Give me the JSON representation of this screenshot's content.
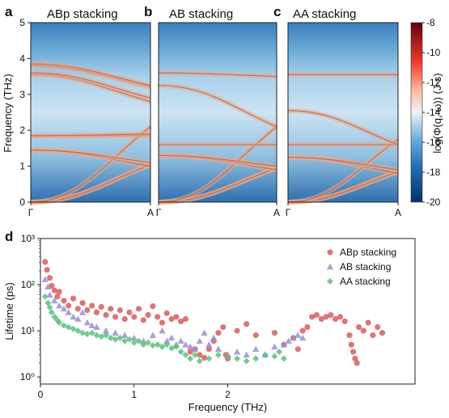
{
  "chart_data": [
    {
      "type": "heatmap",
      "panel": "a",
      "title": "ABp stacking",
      "ylabel": "Frequency (THz)",
      "ylim": [
        0,
        5
      ],
      "yticks": [
        "0",
        "1",
        "2",
        "3",
        "4",
        "5"
      ],
      "xticks": [
        "Γ",
        "A"
      ],
      "bands": [
        {
          "gamma": 0.0,
          "A": 1.05
        },
        {
          "gamma": 0.0,
          "A": 1.05
        },
        {
          "gamma": 0.0,
          "A": 2.1
        },
        {
          "gamma": 1.45,
          "A": 1.0
        },
        {
          "gamma": 1.45,
          "A": 1.1
        },
        {
          "gamma": 1.85,
          "A": 1.85
        },
        {
          "gamma": 1.85,
          "A": 1.9
        },
        {
          "gamma": 3.55,
          "A": 2.8
        },
        {
          "gamma": 3.6,
          "A": 2.9
        },
        {
          "gamma": 3.8,
          "A": 3.2
        },
        {
          "gamma": 3.85,
          "A": 3.25
        }
      ]
    },
    {
      "type": "heatmap",
      "panel": "b",
      "title": "AB stacking",
      "ylim": [
        0,
        5
      ],
      "xticks": [
        "Γ",
        "A"
      ],
      "bands": [
        {
          "gamma": 0.0,
          "A": 0.95
        },
        {
          "gamma": 0.0,
          "A": 0.95
        },
        {
          "gamma": 0.0,
          "A": 2.1
        },
        {
          "gamma": 1.3,
          "A": 0.9
        },
        {
          "gamma": 1.3,
          "A": 1.0
        },
        {
          "gamma": 1.6,
          "A": 1.6
        },
        {
          "gamma": 3.25,
          "A": 2.1
        },
        {
          "gamma": 3.6,
          "A": 3.5
        }
      ]
    },
    {
      "type": "heatmap",
      "panel": "c",
      "title": "AA stacking",
      "ylim": [
        0,
        5
      ],
      "xticks": [
        "Γ",
        "A"
      ],
      "bands": [
        {
          "gamma": 0.0,
          "A": 0.85
        },
        {
          "gamma": 0.0,
          "A": 0.85
        },
        {
          "gamma": 0.0,
          "A": 1.75
        },
        {
          "gamma": 1.25,
          "A": 0.8
        },
        {
          "gamma": 1.25,
          "A": 0.9
        },
        {
          "gamma": 1.6,
          "A": 1.6
        },
        {
          "gamma": 2.55,
          "A": 1.6
        },
        {
          "gamma": 3.55,
          "A": 3.55
        }
      ],
      "colorbar": {
        "label": "log(Φ(q, ω)) (J·s)",
        "range": [
          -20,
          -8
        ],
        "ticks": [
          "-8",
          "-10",
          "-12",
          "-14",
          "-16",
          "-18",
          "-20"
        ]
      }
    },
    {
      "type": "scatter",
      "panel": "d",
      "xlabel": "Frequency (THz)",
      "ylabel": "Lifetime (ps)",
      "yscale": "log",
      "xlim": [
        0,
        4
      ],
      "ylim": [
        0.7,
        1000
      ],
      "xticks": [
        "0",
        "1",
        "2"
      ],
      "yticks": [
        "10⁰",
        "10¹",
        "10²",
        "10³"
      ],
      "legend": "top-right",
      "series": [
        {
          "name": "ABp stacking",
          "color": "#d65f5f",
          "marker": "circle",
          "points": [
            [
              0.05,
              310
            ],
            [
              0.07,
              210
            ],
            [
              0.1,
              140
            ],
            [
              0.12,
              95
            ],
            [
              0.15,
              75
            ],
            [
              0.18,
              55
            ],
            [
              0.2,
              70
            ],
            [
              0.25,
              45
            ],
            [
              0.3,
              35
            ],
            [
              0.35,
              50
            ],
            [
              0.4,
              30
            ],
            [
              0.45,
              40
            ],
            [
              0.5,
              28
            ],
            [
              0.55,
              35
            ],
            [
              0.6,
              25
            ],
            [
              0.65,
              33
            ],
            [
              0.7,
              22
            ],
            [
              0.75,
              30
            ],
            [
              0.8,
              20
            ],
            [
              0.85,
              28
            ],
            [
              0.9,
              18
            ],
            [
              0.95,
              25
            ],
            [
              1.0,
              20
            ],
            [
              1.05,
              30
            ],
            [
              1.1,
              17
            ],
            [
              1.15,
              22
            ],
            [
              1.2,
              34
            ],
            [
              1.25,
              20
            ],
            [
              1.3,
              15
            ],
            [
              1.35,
              24
            ],
            [
              1.4,
              18
            ],
            [
              1.45,
              20
            ],
            [
              1.5,
              16
            ],
            [
              1.55,
              18
            ],
            [
              1.6,
              3.5
            ],
            [
              1.65,
              4
            ],
            [
              1.7,
              3
            ],
            [
              1.75,
              2.6
            ],
            [
              1.8,
              4
            ],
            [
              1.85,
              6
            ],
            [
              1.9,
              9
            ],
            [
              1.95,
              12
            ],
            [
              1.98,
              3
            ],
            [
              2.0,
              2.5
            ],
            [
              2.1,
              10
            ],
            [
              2.2,
              14
            ],
            [
              2.3,
              8
            ],
            [
              2.5,
              9
            ],
            [
              2.6,
              5
            ],
            [
              2.7,
              7
            ],
            [
              2.75,
              4
            ],
            [
              2.8,
              10
            ],
            [
              2.85,
              12
            ],
            [
              2.9,
              20
            ],
            [
              2.95,
              22
            ],
            [
              3.0,
              18
            ],
            [
              3.05,
              20
            ],
            [
              3.1,
              22
            ],
            [
              3.15,
              18
            ],
            [
              3.2,
              20
            ],
            [
              3.25,
              16
            ],
            [
              3.3,
              8
            ],
            [
              3.32,
              5
            ],
            [
              3.34,
              3.5
            ],
            [
              3.36,
              2.5
            ],
            [
              3.38,
              2
            ],
            [
              3.4,
              12
            ],
            [
              3.45,
              10
            ],
            [
              3.5,
              15
            ],
            [
              3.55,
              8
            ],
            [
              3.6,
              12
            ],
            [
              3.65,
              9
            ]
          ]
        },
        {
          "name": "AB stacking",
          "color": "#9a8fd0",
          "marker": "triangle",
          "points": [
            [
              0.05,
              130
            ],
            [
              0.08,
              90
            ],
            [
              0.1,
              60
            ],
            [
              0.15,
              45
            ],
            [
              0.2,
              35
            ],
            [
              0.25,
              30
            ],
            [
              0.3,
              25
            ],
            [
              0.35,
              20
            ],
            [
              0.4,
              18
            ],
            [
              0.45,
              25
            ],
            [
              0.5,
              15
            ],
            [
              0.55,
              13
            ],
            [
              0.6,
              12
            ],
            [
              0.7,
              10
            ],
            [
              0.8,
              9
            ],
            [
              0.9,
              8
            ],
            [
              1.0,
              7
            ],
            [
              1.1,
              6
            ],
            [
              1.2,
              8
            ],
            [
              1.3,
              10
            ],
            [
              1.35,
              6
            ],
            [
              1.4,
              7
            ],
            [
              1.45,
              5
            ],
            [
              1.5,
              6
            ],
            [
              1.55,
              5
            ],
            [
              1.6,
              4.5
            ],
            [
              1.65,
              4
            ],
            [
              1.7,
              6
            ],
            [
              1.75,
              9
            ],
            [
              1.8,
              5
            ],
            [
              1.85,
              7
            ],
            [
              1.9,
              4
            ],
            [
              2.0,
              3
            ],
            [
              2.1,
              3.5
            ],
            [
              2.2,
              3
            ],
            [
              2.3,
              4
            ],
            [
              2.4,
              3
            ],
            [
              2.5,
              4.5
            ],
            [
              2.6,
              5
            ],
            [
              2.65,
              6
            ],
            [
              2.7,
              7
            ],
            [
              2.75,
              8
            ],
            [
              2.8,
              7
            ]
          ]
        },
        {
          "name": "AA stacking",
          "color": "#5fbf7f",
          "marker": "diamond",
          "points": [
            [
              0.05,
              55
            ],
            [
              0.08,
              40
            ],
            [
              0.1,
              32
            ],
            [
              0.12,
              25
            ],
            [
              0.15,
              20
            ],
            [
              0.18,
              17
            ],
            [
              0.2,
              15
            ],
            [
              0.25,
              13
            ],
            [
              0.3,
              12
            ],
            [
              0.35,
              11
            ],
            [
              0.4,
              10
            ],
            [
              0.45,
              9
            ],
            [
              0.5,
              8.5
            ],
            [
              0.55,
              9
            ],
            [
              0.6,
              8
            ],
            [
              0.65,
              7.5
            ],
            [
              0.7,
              8
            ],
            [
              0.75,
              7
            ],
            [
              0.8,
              6.5
            ],
            [
              0.85,
              7
            ],
            [
              0.9,
              6
            ],
            [
              0.95,
              6.5
            ],
            [
              1.0,
              5.5
            ],
            [
              1.05,
              6
            ],
            [
              1.1,
              5
            ],
            [
              1.15,
              5.5
            ],
            [
              1.2,
              4.8
            ],
            [
              1.25,
              5
            ],
            [
              1.3,
              4.5
            ],
            [
              1.35,
              5
            ],
            [
              1.4,
              4.2
            ],
            [
              1.45,
              4.5
            ],
            [
              1.5,
              3.5
            ],
            [
              1.55,
              3
            ],
            [
              1.6,
              2.5
            ],
            [
              1.65,
              3
            ],
            [
              1.7,
              2.2
            ],
            [
              1.8,
              2.5
            ],
            [
              1.9,
              3
            ],
            [
              2.0,
              2.8
            ],
            [
              2.1,
              2.5
            ],
            [
              2.2,
              2.2
            ],
            [
              2.3,
              2.5
            ],
            [
              2.4,
              3
            ],
            [
              2.5,
              2.8
            ],
            [
              2.55,
              3.5
            ],
            [
              2.6,
              2.5
            ]
          ]
        }
      ]
    }
  ]
}
